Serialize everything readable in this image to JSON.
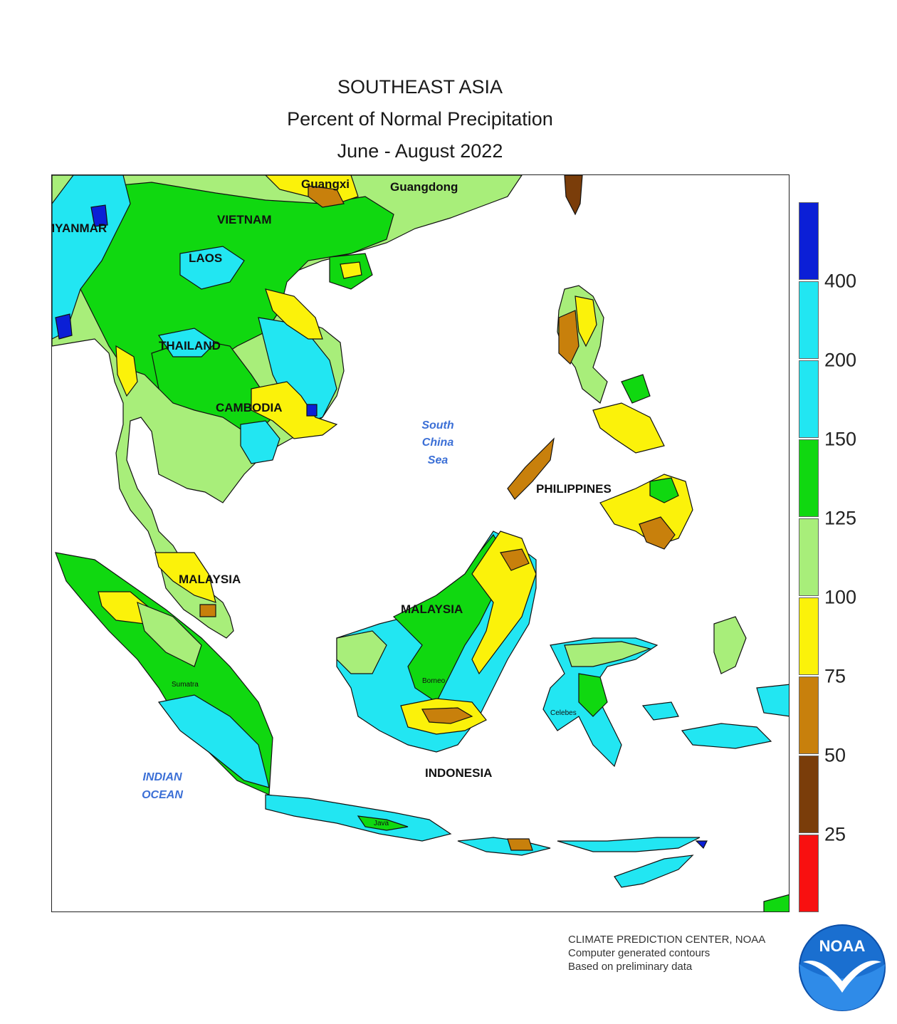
{
  "title": {
    "line1": "SOUTHEAST ASIA",
    "line2": "Percent of Normal Precipitation",
    "line3": "June - August 2022"
  },
  "map": {
    "labels": {
      "guangxi": "Guangxi",
      "guangdong": "Guangdong",
      "myanmar": "MYANMAR",
      "vietnam": "VIETNAM",
      "laos": "LAOS",
      "thailand": "THAILAND",
      "cambodia": "CAMBODIA",
      "malaysia_peninsula": "MALAYSIA",
      "malaysia_borneo": "MALAYSIA",
      "philippines": "PHILIPPINES",
      "indonesia": "INDONESIA",
      "sumatra": "Sumatra",
      "borneo": "Borneo",
      "celebes": "Celebes",
      "java": "Java",
      "south_china_sea": [
        "South",
        "China",
        "Sea"
      ],
      "indian_ocean": [
        "INDIAN",
        "OCEAN"
      ]
    }
  },
  "legend": {
    "bins": [
      {
        "color": "#0b1fd6"
      },
      {
        "color": "#22e6f2"
      },
      {
        "color": "#22e6f2"
      },
      {
        "color": "#10d810"
      },
      {
        "color": "#a8ee7a"
      },
      {
        "color": "#fbf20a"
      },
      {
        "color": "#c8800c"
      },
      {
        "color": "#7a3d0a"
      },
      {
        "color": "#f81010"
      }
    ],
    "ticks": [
      "400",
      "200",
      "150",
      "125",
      "100",
      "75",
      "50",
      "25"
    ]
  },
  "credits": {
    "line1": "CLIMATE PREDICTION CENTER, NOAA",
    "line2": "Computer generated contours",
    "line3": "Based on preliminary data"
  },
  "logo": {
    "text": "NOAA",
    "icon": "noaa-seagull-logo"
  }
}
